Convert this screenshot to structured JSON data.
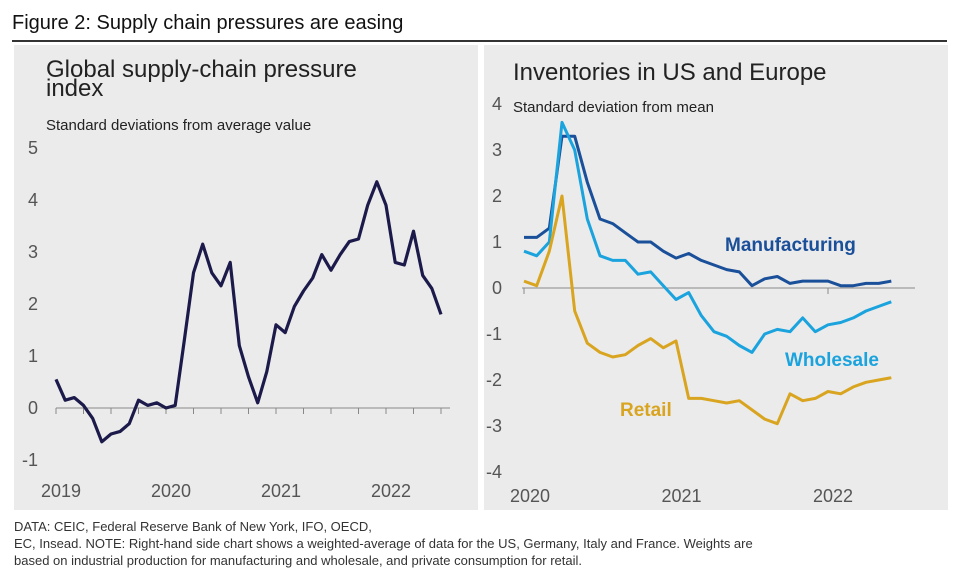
{
  "figure_title": "Figure 2: Supply chain pressures are easing",
  "footer": {
    "line1": "DATA: CEIC, Federal Reserve Bank of New York, IFO, OECD,",
    "line2": "EC, Insead. NOTE: Right-hand side chart shows a weighted-average of data for the US, Germany, Italy and France. Weights are",
    "line3": "based on industrial production for manufacturing and wholesale, and private consumption for retail."
  },
  "chart_data": [
    {
      "type": "line",
      "title_line1": "Global supply-chain pressure",
      "title_line2": "index",
      "ylabel": "Standard deviations from average value",
      "ylim": [
        -1,
        5
      ],
      "yticks": [
        "5",
        "4",
        "3",
        "2",
        "1",
        "0",
        "-1"
      ],
      "xticks": [
        "2019",
        "2020",
        "2021",
        "2022"
      ],
      "grid": false,
      "color": "#1c1a4a",
      "series": [
        {
          "x": [
            "2019-01",
            "2019-02",
            "2019-03",
            "2019-04",
            "2019-05",
            "2019-06",
            "2019-07",
            "2019-08",
            "2019-09",
            "2019-10",
            "2019-11",
            "2019-12",
            "2020-01",
            "2020-02",
            "2020-03",
            "2020-04",
            "2020-05",
            "2020-06",
            "2020-07",
            "2020-08",
            "2020-09",
            "2020-10",
            "2020-11",
            "2020-12",
            "2021-01",
            "2021-02",
            "2021-03",
            "2021-04",
            "2021-05",
            "2021-06",
            "2021-07",
            "2021-08",
            "2021-09",
            "2021-10",
            "2021-11",
            "2021-12",
            "2022-01",
            "2022-02",
            "2022-03",
            "2022-04",
            "2022-05",
            "2022-06",
            "2022-07"
          ],
          "values": [
            0.55,
            0.15,
            0.2,
            0.05,
            -0.2,
            -0.65,
            -0.5,
            -0.45,
            -0.3,
            0.15,
            0.05,
            0.1,
            0.0,
            0.05,
            1.3,
            2.6,
            3.15,
            2.6,
            2.35,
            2.8,
            1.2,
            0.6,
            0.1,
            0.7,
            1.6,
            1.45,
            1.95,
            2.25,
            2.5,
            2.95,
            2.65,
            2.95,
            3.2,
            3.25,
            3.9,
            4.35,
            3.9,
            2.8,
            2.75,
            3.4,
            2.55,
            2.3,
            1.8
          ]
        }
      ]
    },
    {
      "type": "line",
      "title": "Inventories in US and Europe",
      "ylabel": "Standard deviation from mean",
      "ylim": [
        -4,
        4
      ],
      "yticks": [
        "4",
        "3",
        "2",
        "1",
        "0",
        "-1",
        "-2",
        "-3",
        "-4"
      ],
      "xticks": [
        "2020",
        "2021",
        "2022"
      ],
      "grid": false,
      "series": [
        {
          "name": "Manufacturing",
          "color": "#1a4f99",
          "x": [
            "2020-01",
            "2020-02",
            "2020-03",
            "2020-04",
            "2020-05",
            "2020-06",
            "2020-07",
            "2020-08",
            "2020-09",
            "2020-10",
            "2020-11",
            "2020-12",
            "2021-01",
            "2021-02",
            "2021-03",
            "2021-04",
            "2021-05",
            "2021-06",
            "2021-07",
            "2021-08",
            "2021-09",
            "2021-10",
            "2021-11",
            "2021-12",
            "2022-01",
            "2022-02",
            "2022-03",
            "2022-04",
            "2022-05",
            "2022-06"
          ],
          "values": [
            1.1,
            1.1,
            1.3,
            3.3,
            3.3,
            2.3,
            1.5,
            1.4,
            1.2,
            1.0,
            1.0,
            0.8,
            0.65,
            0.75,
            0.6,
            0.5,
            0.4,
            0.35,
            0.05,
            0.2,
            0.25,
            0.1,
            0.15,
            0.15,
            0.15,
            0.05,
            0.05,
            0.1,
            0.1,
            0.15
          ]
        },
        {
          "name": "Wholesale",
          "color": "#1ba3de",
          "x": [
            "2020-01",
            "2020-02",
            "2020-03",
            "2020-04",
            "2020-05",
            "2020-06",
            "2020-07",
            "2020-08",
            "2020-09",
            "2020-10",
            "2020-11",
            "2020-12",
            "2021-01",
            "2021-02",
            "2021-03",
            "2021-04",
            "2021-05",
            "2021-06",
            "2021-07",
            "2021-08",
            "2021-09",
            "2021-10",
            "2021-11",
            "2021-12",
            "2022-01",
            "2022-02",
            "2022-03",
            "2022-04",
            "2022-05",
            "2022-06"
          ],
          "values": [
            0.8,
            0.7,
            1.0,
            3.6,
            3.0,
            1.5,
            0.7,
            0.6,
            0.6,
            0.3,
            0.35,
            0.05,
            -0.25,
            -0.1,
            -0.6,
            -0.95,
            -1.05,
            -1.25,
            -1.4,
            -1.0,
            -0.9,
            -0.95,
            -0.65,
            -0.95,
            -0.8,
            -0.75,
            -0.65,
            -0.5,
            -0.4,
            -0.3
          ]
        },
        {
          "name": "Retail",
          "color": "#d9a520",
          "x": [
            "2020-01",
            "2020-02",
            "2020-03",
            "2020-04",
            "2020-05",
            "2020-06",
            "2020-07",
            "2020-08",
            "2020-09",
            "2020-10",
            "2020-11",
            "2020-12",
            "2021-01",
            "2021-02",
            "2021-03",
            "2021-04",
            "2021-05",
            "2021-06",
            "2021-07",
            "2021-08",
            "2021-09",
            "2021-10",
            "2021-11",
            "2021-12",
            "2022-01",
            "2022-02",
            "2022-03",
            "2022-04",
            "2022-05",
            "2022-06"
          ],
          "values": [
            0.15,
            0.05,
            0.8,
            2.0,
            -0.5,
            -1.2,
            -1.4,
            -1.5,
            -1.45,
            -1.25,
            -1.1,
            -1.3,
            -1.15,
            -2.4,
            -2.4,
            -2.45,
            -2.5,
            -2.45,
            -2.65,
            -2.85,
            -2.95,
            -2.3,
            -2.45,
            -2.4,
            -2.25,
            -2.3,
            -2.15,
            -2.05,
            -2.0,
            -1.95
          ]
        }
      ]
    }
  ]
}
